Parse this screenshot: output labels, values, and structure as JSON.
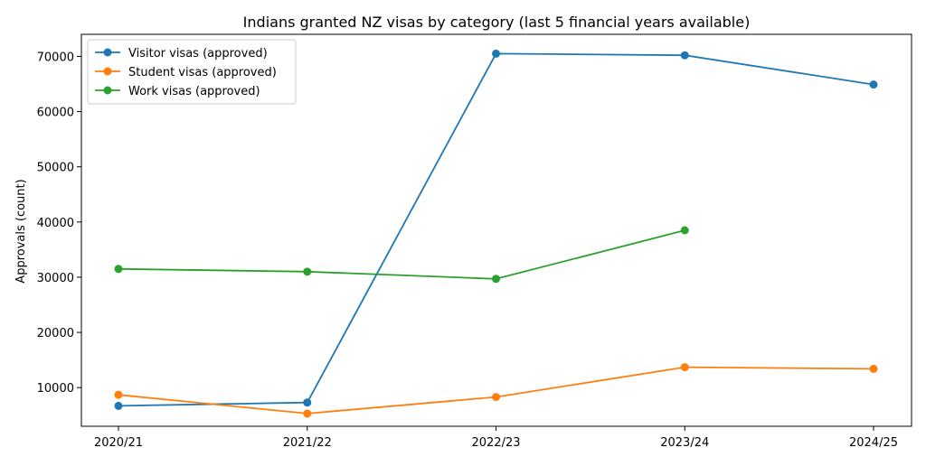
{
  "chart_data": {
    "type": "line",
    "title": "Indians granted NZ visas by category (last 5 financial years available)",
    "xlabel": "",
    "ylabel": "Approvals (count)",
    "categories": [
      "2020/21",
      "2021/22",
      "2022/23",
      "2023/24",
      "2024/25"
    ],
    "ylim": [
      3000,
      74000
    ],
    "yticks": [
      10000,
      20000,
      30000,
      40000,
      50000,
      60000,
      70000
    ],
    "grid": false,
    "legend_position": "upper-left",
    "series": [
      {
        "name": "Visitor visas (approved)",
        "color": "#1f77b4",
        "values": [
          6700,
          7300,
          70500,
          70200,
          64900
        ]
      },
      {
        "name": "Student visas (approved)",
        "color": "#ff7f0e",
        "values": [
          8700,
          5300,
          8300,
          13700,
          13400
        ]
      },
      {
        "name": "Work visas (approved)",
        "color": "#2ca02c",
        "values": [
          31500,
          31000,
          29700,
          38500,
          null
        ]
      }
    ]
  }
}
